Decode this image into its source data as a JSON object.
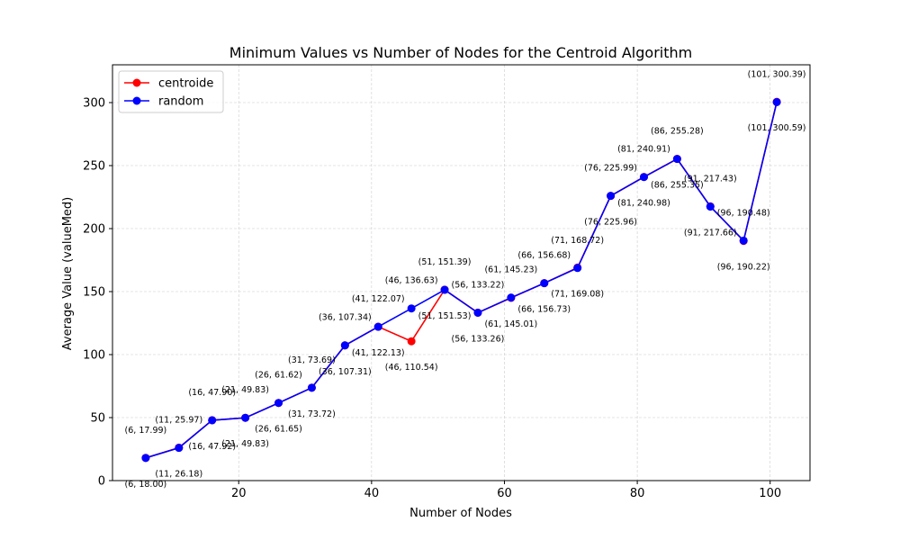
{
  "chart_data": {
    "type": "line",
    "title": "Minimum Values vs Number of Nodes for the Centroid Algorithm",
    "xlabel": "Number of Nodes",
    "ylabel": "Average Value (valueMed)",
    "xlim": [
      1,
      106
    ],
    "ylim": [
      0,
      330
    ],
    "xticks": [
      20,
      40,
      60,
      80,
      100
    ],
    "yticks": [
      0,
      50,
      100,
      150,
      200,
      250,
      300
    ],
    "grid": true,
    "legend_position": "upper-left",
    "x": [
      6,
      11,
      16,
      21,
      26,
      31,
      36,
      41,
      46,
      51,
      56,
      61,
      66,
      71,
      76,
      81,
      86,
      91,
      96,
      101
    ],
    "series": [
      {
        "name": "centroide",
        "color": "#ff0000",
        "values": [
          18.0,
          26.18,
          47.92,
          49.83,
          61.65,
          73.72,
          107.31,
          122.13,
          110.54,
          151.53,
          133.26,
          145.01,
          156.73,
          169.08,
          225.96,
          240.98,
          255.35,
          217.66,
          190.22,
          300.59
        ],
        "labels": [
          "(6, 18.00)",
          "(11, 26.18)",
          "(16, 47.92)",
          "(21, 49.83)",
          "(26, 61.65)",
          "(31, 73.72)",
          "(36, 107.31)",
          "(41, 122.13)",
          "(46, 110.54)",
          "(51, 151.53)",
          "(56, 133.26)",
          "(61, 145.01)",
          "(66, 156.73)",
          "(71, 169.08)",
          "(76, 225.96)",
          "(81, 240.98)",
          "(86, 255.35)",
          "(91, 217.66)",
          "(96, 190.22)",
          "(101, 300.59)"
        ]
      },
      {
        "name": "random",
        "color": "#0000ff",
        "values": [
          17.99,
          25.97,
          47.9,
          49.83,
          61.62,
          73.69,
          107.34,
          122.07,
          136.63,
          151.39,
          133.22,
          145.23,
          156.68,
          168.72,
          225.99,
          240.91,
          255.28,
          217.43,
          190.48,
          300.39
        ],
        "labels": [
          "(6, 17.99)",
          "(11, 25.97)",
          "(16, 47.90)",
          "(21, 49.83)",
          "(26, 61.62)",
          "(31, 73.69)",
          "(36, 107.34)",
          "(41, 122.07)",
          "(46, 136.63)",
          "(51, 151.39)",
          "(56, 133.22)",
          "(61, 145.23)",
          "(66, 156.68)",
          "(71, 168.72)",
          "(76, 225.99)",
          "(81, 240.91)",
          "(86, 255.28)",
          "(91, 217.43)",
          "(96, 190.48)",
          "(101, 300.39)"
        ]
      }
    ]
  }
}
